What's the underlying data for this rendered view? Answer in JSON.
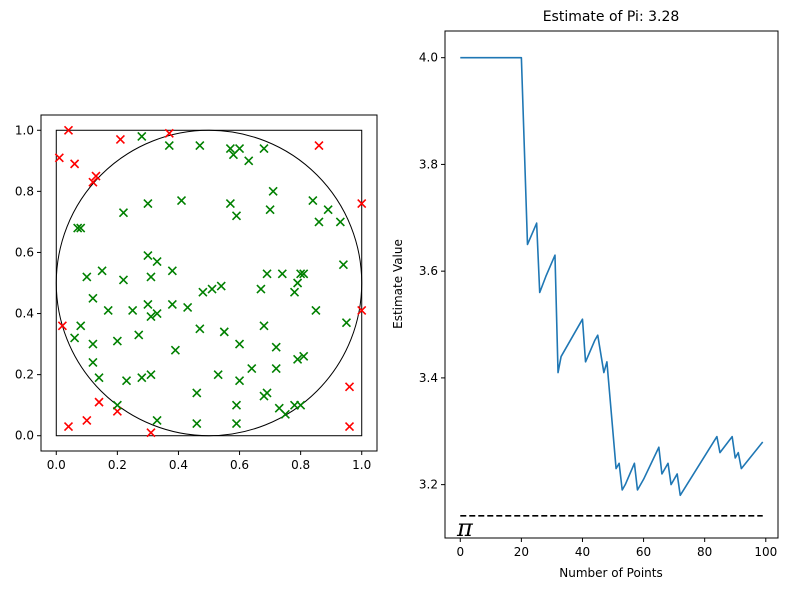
{
  "chart_data": [
    {
      "type": "scatter",
      "title": "",
      "xlabel": "",
      "ylabel": "",
      "xlim": [
        -0.05,
        1.05
      ],
      "ylim": [
        -0.05,
        1.05
      ],
      "xticks": [
        "0.0",
        "0.2",
        "0.4",
        "0.6",
        "0.8",
        "1.0"
      ],
      "yticks": [
        "0.0",
        "0.2",
        "0.4",
        "0.6",
        "0.8",
        "1.0"
      ],
      "marker": "x",
      "overlays": [
        "unit-square",
        "inscribed-circle"
      ],
      "series": [
        {
          "color": "#ff0000",
          "points": [
            [
              0.01,
              0.91
            ],
            [
              0.04,
              1.0
            ],
            [
              0.06,
              0.89
            ],
            [
              0.21,
              0.97
            ],
            [
              0.37,
              0.99
            ],
            [
              0.12,
              0.83
            ],
            [
              0.13,
              0.85
            ],
            [
              0.86,
              0.95
            ],
            [
              1.0,
              0.76
            ],
            [
              0.02,
              0.36
            ],
            [
              1.0,
              0.41
            ],
            [
              0.04,
              0.03
            ],
            [
              0.1,
              0.05
            ],
            [
              0.14,
              0.11
            ],
            [
              0.2,
              0.08
            ],
            [
              0.31,
              0.01
            ],
            [
              0.96,
              0.16
            ],
            [
              0.96,
              0.03
            ]
          ]
        },
        {
          "color": "#008000",
          "points": [
            [
              0.28,
              0.98
            ],
            [
              0.37,
              0.95
            ],
            [
              0.47,
              0.95
            ],
            [
              0.57,
              0.94
            ],
            [
              0.58,
              0.92
            ],
            [
              0.6,
              0.94
            ],
            [
              0.63,
              0.9
            ],
            [
              0.68,
              0.94
            ],
            [
              0.71,
              0.8
            ],
            [
              0.7,
              0.74
            ],
            [
              0.57,
              0.76
            ],
            [
              0.59,
              0.72
            ],
            [
              0.84,
              0.77
            ],
            [
              0.89,
              0.74
            ],
            [
              0.93,
              0.7
            ],
            [
              0.86,
              0.7
            ],
            [
              0.3,
              0.76
            ],
            [
              0.41,
              0.77
            ],
            [
              0.22,
              0.73
            ],
            [
              0.07,
              0.68
            ],
            [
              0.08,
              0.68
            ],
            [
              0.3,
              0.59
            ],
            [
              0.33,
              0.57
            ],
            [
              0.38,
              0.54
            ],
            [
              0.31,
              0.52
            ],
            [
              0.15,
              0.54
            ],
            [
              0.1,
              0.52
            ],
            [
              0.22,
              0.51
            ],
            [
              0.69,
              0.53
            ],
            [
              0.74,
              0.53
            ],
            [
              0.8,
              0.53
            ],
            [
              0.81,
              0.53
            ],
            [
              0.79,
              0.5
            ],
            [
              0.78,
              0.47
            ],
            [
              0.94,
              0.56
            ],
            [
              0.12,
              0.45
            ],
            [
              0.17,
              0.41
            ],
            [
              0.25,
              0.41
            ],
            [
              0.38,
              0.43
            ],
            [
              0.43,
              0.42
            ],
            [
              0.3,
              0.43
            ],
            [
              0.31,
              0.39
            ],
            [
              0.33,
              0.4
            ],
            [
              0.48,
              0.47
            ],
            [
              0.51,
              0.48
            ],
            [
              0.54,
              0.49
            ],
            [
              0.67,
              0.48
            ],
            [
              0.85,
              0.41
            ],
            [
              0.95,
              0.37
            ],
            [
              0.08,
              0.36
            ],
            [
              0.06,
              0.32
            ],
            [
              0.12,
              0.3
            ],
            [
              0.2,
              0.31
            ],
            [
              0.27,
              0.33
            ],
            [
              0.39,
              0.28
            ],
            [
              0.47,
              0.35
            ],
            [
              0.55,
              0.34
            ],
            [
              0.6,
              0.3
            ],
            [
              0.72,
              0.29
            ],
            [
              0.68,
              0.36
            ],
            [
              0.12,
              0.24
            ],
            [
              0.14,
              0.19
            ],
            [
              0.23,
              0.18
            ],
            [
              0.28,
              0.19
            ],
            [
              0.31,
              0.2
            ],
            [
              0.53,
              0.2
            ],
            [
              0.6,
              0.18
            ],
            [
              0.64,
              0.22
            ],
            [
              0.72,
              0.22
            ],
            [
              0.79,
              0.25
            ],
            [
              0.81,
              0.26
            ],
            [
              0.46,
              0.14
            ],
            [
              0.68,
              0.13
            ],
            [
              0.69,
              0.14
            ],
            [
              0.73,
              0.09
            ],
            [
              0.75,
              0.07
            ],
            [
              0.59,
              0.1
            ],
            [
              0.78,
              0.1
            ],
            [
              0.8,
              0.1
            ],
            [
              0.2,
              0.1
            ],
            [
              0.33,
              0.05
            ],
            [
              0.46,
              0.04
            ],
            [
              0.59,
              0.04
            ]
          ]
        }
      ]
    },
    {
      "type": "line",
      "title": "Estimate of Pi: 3.28",
      "xlabel": "Number of Points",
      "ylabel": "Estimate Value",
      "xlim": [
        -5,
        104
      ],
      "ylim": [
        3.1,
        4.05
      ],
      "xticks": [
        "0",
        "20",
        "40",
        "60",
        "80",
        "100"
      ],
      "yticks": [
        "3.2",
        "3.4",
        "3.6",
        "3.8",
        "4.0"
      ],
      "reference_line": {
        "y": 3.14159,
        "style": "dashed",
        "color": "#000000",
        "label": "π"
      },
      "series": [
        {
          "color": "#1f77b4",
          "x": [
            0,
            20,
            22,
            25,
            26,
            28,
            31,
            32,
            33,
            37,
            40,
            41,
            44,
            45,
            47,
            48,
            51,
            52,
            53,
            54,
            57,
            58,
            60,
            65,
            66,
            68,
            69,
            71,
            72,
            84,
            85,
            89,
            90,
            91,
            92,
            99
          ],
          "y": [
            4.0,
            4.0,
            3.65,
            3.69,
            3.56,
            3.59,
            3.63,
            3.41,
            3.44,
            3.48,
            3.51,
            3.43,
            3.47,
            3.48,
            3.41,
            3.43,
            3.23,
            3.24,
            3.19,
            3.2,
            3.24,
            3.19,
            3.21,
            3.27,
            3.22,
            3.24,
            3.2,
            3.22,
            3.18,
            3.29,
            3.26,
            3.29,
            3.25,
            3.26,
            3.23,
            3.28
          ]
        }
      ]
    }
  ]
}
